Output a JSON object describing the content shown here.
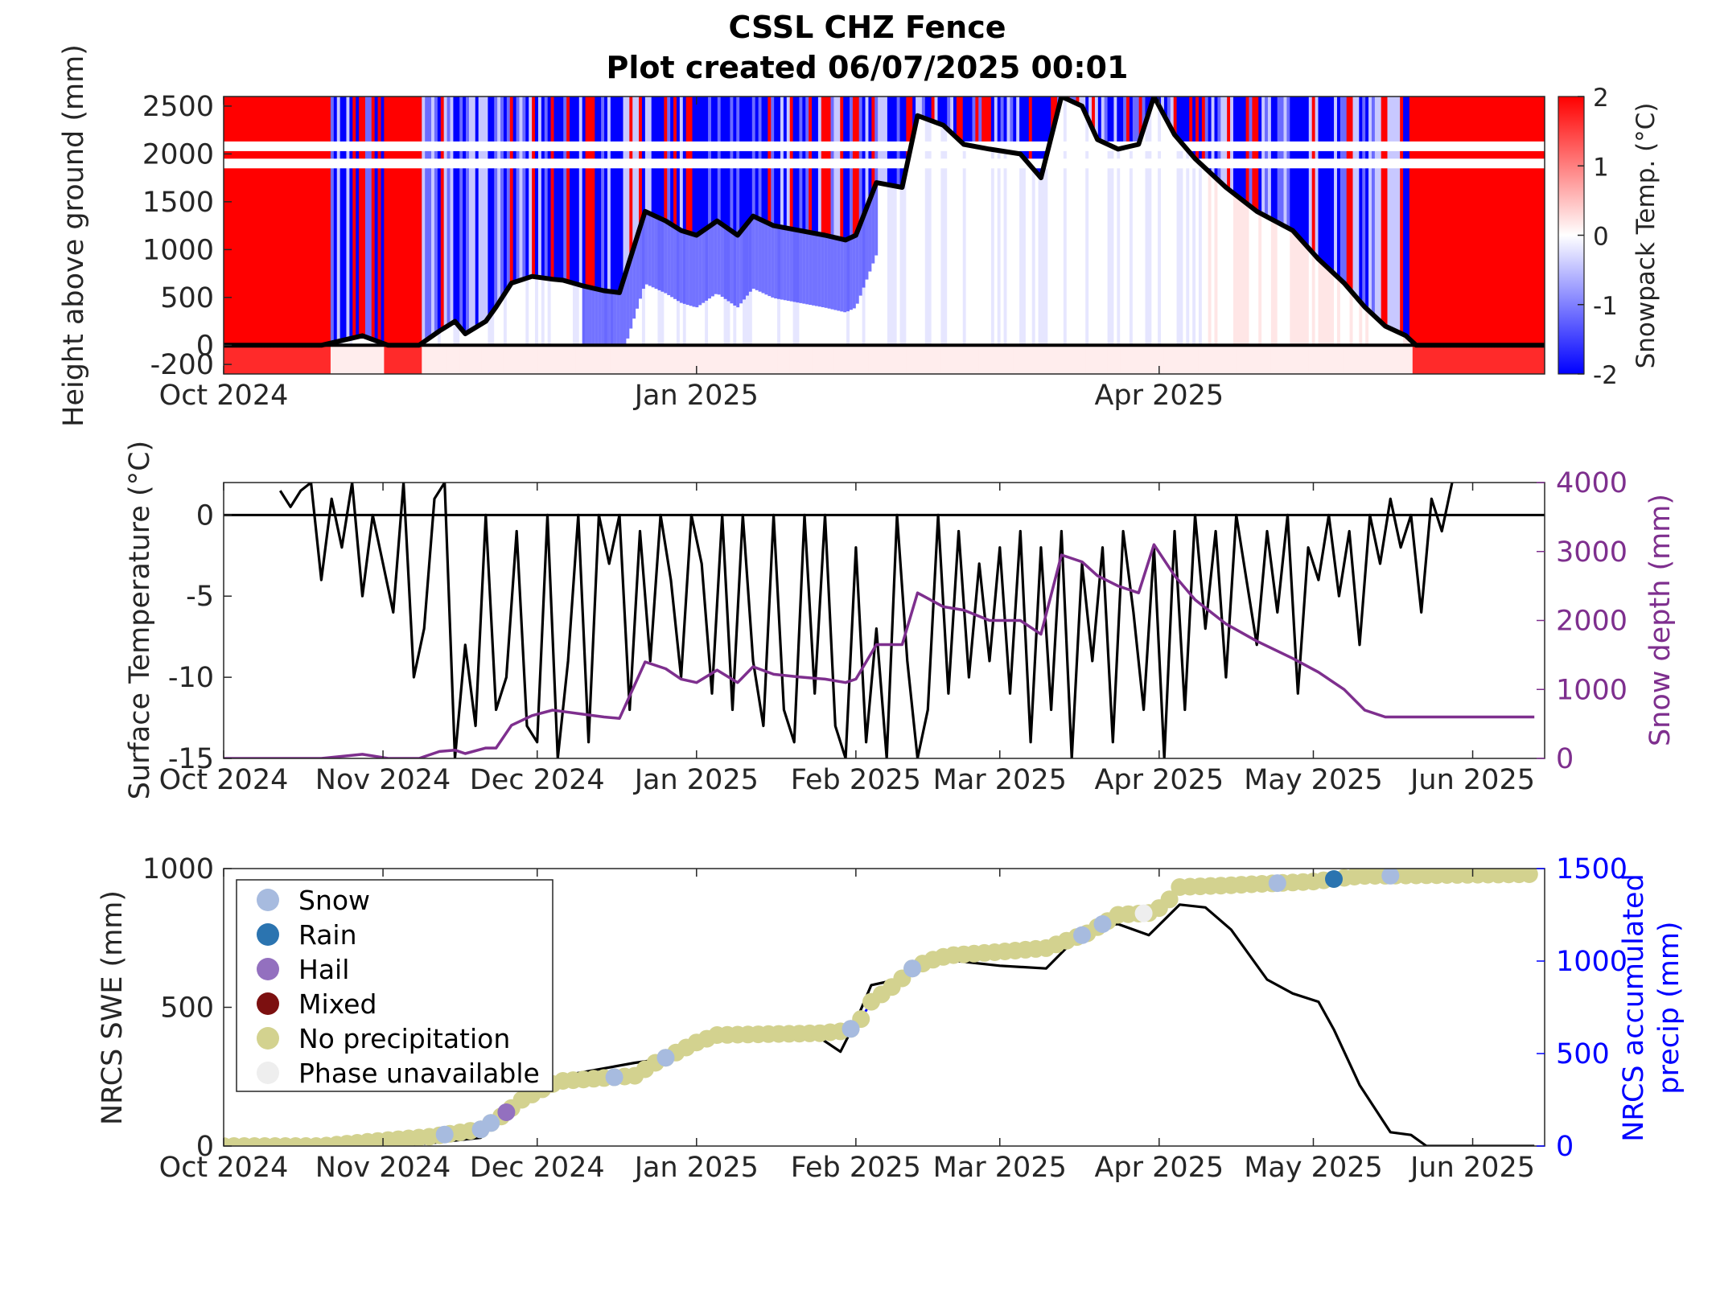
{
  "header": {
    "title": "CSSL CHZ Fence",
    "subtitle": "Plot created 06/07/2025 00:01"
  },
  "colors": {
    "warm": "#ff0000",
    "cold": "#0000ff",
    "snow_line": "#000000",
    "snow_depth": "#7e2f8e",
    "precip": "#0000ff",
    "snow_phase": "#a7bbdf",
    "rain_phase": "#2b74b0",
    "hail_phase": "#9370bf",
    "mixed_phase": "#7c1010",
    "none_phase": "#d3d28f",
    "unavailable_phase": "#eeeeee"
  },
  "chart_data": [
    {
      "id": "snowpack",
      "type": "heatmap",
      "ylabel": "Height above ground (mm)",
      "colorbar_label": "Snowpack Temp. (°C)",
      "colorbar_ticks": [
        "2",
        "1",
        "0",
        "-1",
        "-2"
      ],
      "clim": [
        -2,
        2
      ],
      "ylim": [
        -300,
        2600
      ],
      "yticks": [
        2500,
        2000,
        1500,
        1000,
        500,
        0,
        -200
      ],
      "ytick_labels": [
        "2500",
        "2000",
        "1500",
        "1000",
        "500",
        "0",
        "-200"
      ],
      "x_range": [
        "2024-10-01",
        "2025-06-15"
      ],
      "xticks": [
        "2024-10-01",
        "2025-01-01",
        "2025-04-01"
      ],
      "xtick_labels": [
        "Oct 2024",
        "Jan 2025",
        "Apr 2025"
      ],
      "snow_depth_line": {
        "x": [
          "2024-10-01",
          "2024-10-20",
          "2024-10-28",
          "2024-11-02",
          "2024-11-08",
          "2024-11-12",
          "2024-11-15",
          "2024-11-17",
          "2024-11-21",
          "2024-11-23",
          "2024-11-26",
          "2024-11-30",
          "2024-12-04",
          "2024-12-06",
          "2024-12-10",
          "2024-12-14",
          "2024-12-17",
          "2024-12-22",
          "2024-12-26",
          "2024-12-29",
          "2025-01-01",
          "2025-01-05",
          "2025-01-09",
          "2025-01-12",
          "2025-01-16",
          "2025-01-21",
          "2025-01-26",
          "2025-01-30",
          "2025-02-01",
          "2025-02-05",
          "2025-02-10",
          "2025-02-13",
          "2025-02-18",
          "2025-02-22",
          "2025-02-27",
          "2025-03-05",
          "2025-03-09",
          "2025-03-13",
          "2025-03-17",
          "2025-03-20",
          "2025-03-24",
          "2025-03-28",
          "2025-03-31",
          "2025-04-04",
          "2025-04-08",
          "2025-04-14",
          "2025-04-20",
          "2025-04-27",
          "2025-05-02",
          "2025-05-07",
          "2025-05-11",
          "2025-05-15",
          "2025-05-19",
          "2025-05-21",
          "2025-05-23",
          "2025-06-15"
        ],
        "y": [
          0,
          0,
          100,
          0,
          0,
          150,
          250,
          120,
          250,
          400,
          650,
          720,
          690,
          680,
          620,
          570,
          550,
          1400,
          1300,
          1200,
          1150,
          1300,
          1150,
          1350,
          1250,
          1200,
          1150,
          1100,
          1150,
          1700,
          1650,
          2400,
          2300,
          2100,
          2050,
          2000,
          1750,
          2600,
          2500,
          2150,
          2050,
          2100,
          2600,
          2200,
          1950,
          1650,
          1400,
          1200,
          900,
          650,
          400,
          200,
          100,
          0,
          0,
          0
        ],
        "unit": "mm"
      }
    },
    {
      "id": "surface",
      "type": "line",
      "ylabel": "Surface Temperature (°C)",
      "y2label": "Snow depth (mm)",
      "ylim": [
        -15,
        2
      ],
      "yticks": [
        0,
        -5,
        -10,
        -15
      ],
      "ytick_labels": [
        "0",
        "-5",
        "-10",
        "-15"
      ],
      "y2lim": [
        0,
        4000
      ],
      "y2ticks": [
        4000,
        3000,
        2000,
        1000,
        0
      ],
      "y2tick_labels": [
        "4000",
        "3000",
        "2000",
        "1000",
        "0"
      ],
      "x_range": [
        "2024-10-01",
        "2025-06-15"
      ],
      "xticks": [
        "2024-10-01",
        "2024-11-01",
        "2024-12-01",
        "2025-01-01",
        "2025-02-01",
        "2025-03-01",
        "2025-04-01",
        "2025-05-01",
        "2025-06-01"
      ],
      "xtick_labels": [
        "Oct 2024",
        "Nov 2024",
        "Dec 2024",
        "Jan 2025",
        "Feb 2025",
        "Mar 2025",
        "Apr 2025",
        "May 2025",
        "Jun 2025"
      ],
      "series": [
        {
          "name": "Surface Temperature",
          "axis": "left",
          "x": [
            "2024-10-12",
            "2024-10-14",
            "2024-10-16",
            "2024-10-18",
            "2024-10-20",
            "2024-10-22",
            "2024-10-24",
            "2024-10-26",
            "2024-10-28",
            "2024-10-30",
            "2024-11-01",
            "2024-11-03",
            "2024-11-05",
            "2024-11-07",
            "2024-11-09",
            "2024-11-11",
            "2024-11-13",
            "2024-11-15",
            "2024-11-17",
            "2024-11-19",
            "2024-11-21",
            "2024-11-23",
            "2024-11-25",
            "2024-11-27",
            "2024-11-29",
            "2024-12-01",
            "2024-12-03",
            "2024-12-05",
            "2024-12-07",
            "2024-12-09",
            "2024-12-11",
            "2024-12-13",
            "2024-12-15",
            "2024-12-17",
            "2024-12-19",
            "2024-12-21",
            "2024-12-23",
            "2024-12-25",
            "2024-12-27",
            "2024-12-29",
            "2024-12-31",
            "2025-01-02",
            "2025-01-04",
            "2025-01-06",
            "2025-01-08",
            "2025-01-10",
            "2025-01-12",
            "2025-01-14",
            "2025-01-16",
            "2025-01-18",
            "2025-01-20",
            "2025-01-22",
            "2025-01-24",
            "2025-01-26",
            "2025-01-28",
            "2025-01-30",
            "2025-02-01",
            "2025-02-03",
            "2025-02-05",
            "2025-02-07",
            "2025-02-09",
            "2025-02-11",
            "2025-02-13",
            "2025-02-15",
            "2025-02-17",
            "2025-02-19",
            "2025-02-21",
            "2025-02-23",
            "2025-02-25",
            "2025-02-27",
            "2025-03-01",
            "2025-03-03",
            "2025-03-05",
            "2025-03-07",
            "2025-03-09",
            "2025-03-11",
            "2025-03-13",
            "2025-03-15",
            "2025-03-17",
            "2025-03-19",
            "2025-03-21",
            "2025-03-23",
            "2025-03-25",
            "2025-03-27",
            "2025-03-29",
            "2025-03-31",
            "2025-04-02",
            "2025-04-04",
            "2025-04-06",
            "2025-04-08",
            "2025-04-10",
            "2025-04-12",
            "2025-04-14",
            "2025-04-16",
            "2025-04-18",
            "2025-04-20",
            "2025-04-22",
            "2025-04-24",
            "2025-04-26",
            "2025-04-28",
            "2025-04-30",
            "2025-05-02",
            "2025-05-04",
            "2025-05-06",
            "2025-05-08",
            "2025-05-10",
            "2025-05-12",
            "2025-05-14",
            "2025-05-16",
            "2025-05-18",
            "2025-05-20",
            "2025-05-22",
            "2025-05-24",
            "2025-05-26",
            "2025-05-28"
          ],
          "y": [
            1.5,
            0.5,
            1.5,
            2,
            -4,
            1,
            -2,
            2,
            -5,
            0,
            -3,
            -6,
            2,
            -10,
            -7,
            1,
            2,
            -15,
            -8,
            -13,
            0,
            -12,
            -10,
            -1,
            -13,
            -14,
            0,
            -15,
            -9,
            0,
            -14,
            0,
            -3,
            0,
            -12,
            -1,
            -9,
            0,
            -4,
            -10,
            0,
            -3,
            -11,
            0,
            -12,
            0,
            -9,
            -13,
            0,
            -12,
            -14,
            0,
            -11,
            0,
            -13,
            -15,
            -2,
            -14,
            -7,
            -15,
            0,
            -9,
            -15,
            -12,
            0,
            -11,
            -1,
            -10,
            -3,
            -9,
            -2,
            -11,
            -1,
            -14,
            -2,
            -12,
            -1,
            -15,
            -3,
            -9,
            -2,
            -14,
            -1,
            -6,
            -12,
            -2,
            -15,
            -1,
            -12,
            0,
            -7,
            -1,
            -10,
            0,
            -4,
            -8,
            -1,
            -6,
            0,
            -11,
            -2,
            -4,
            0,
            -5,
            -1,
            -8,
            0,
            -3,
            1,
            -2,
            0,
            -6,
            1,
            -1,
            2
          ],
          "unit": "°C"
        },
        {
          "name": "Snow depth",
          "axis": "right",
          "x": [
            "2024-10-01",
            "2024-10-20",
            "2024-10-28",
            "2024-11-02",
            "2024-11-08",
            "2024-11-12",
            "2024-11-15",
            "2024-11-17",
            "2024-11-21",
            "2024-11-23",
            "2024-11-26",
            "2024-11-30",
            "2024-12-04",
            "2024-12-06",
            "2024-12-10",
            "2024-12-14",
            "2024-12-17",
            "2024-12-22",
            "2024-12-26",
            "2024-12-29",
            "2025-01-01",
            "2025-01-05",
            "2025-01-09",
            "2025-01-12",
            "2025-01-16",
            "2025-01-21",
            "2025-01-26",
            "2025-01-30",
            "2025-02-01",
            "2025-02-05",
            "2025-02-10",
            "2025-02-13",
            "2025-02-18",
            "2025-02-22",
            "2025-02-27",
            "2025-03-05",
            "2025-03-09",
            "2025-03-13",
            "2025-03-17",
            "2025-03-20",
            "2025-03-24",
            "2025-03-28",
            "2025-03-31",
            "2025-04-04",
            "2025-04-08",
            "2025-04-14",
            "2025-04-20",
            "2025-04-27",
            "2025-05-02",
            "2025-05-07",
            "2025-05-11",
            "2025-05-15",
            "2025-05-19",
            "2025-05-22",
            "2025-05-26",
            "2025-06-13"
          ],
          "y": [
            0,
            0,
            60,
            0,
            0,
            100,
            120,
            70,
            150,
            150,
            480,
            620,
            700,
            680,
            640,
            600,
            580,
            1400,
            1300,
            1150,
            1100,
            1280,
            1100,
            1330,
            1220,
            1180,
            1150,
            1100,
            1150,
            1650,
            1650,
            2400,
            2200,
            2150,
            2000,
            2000,
            1800,
            2950,
            2850,
            2650,
            2500,
            2400,
            3100,
            2650,
            2300,
            1950,
            1700,
            1450,
            1250,
            1000,
            700,
            600,
            600,
            600,
            600,
            600
          ],
          "unit": "mm"
        }
      ]
    },
    {
      "id": "nrcs",
      "type": "line",
      "ylabel": "NRCS SWE (mm)",
      "y2label": "NRCS accumulated precip (mm)",
      "ylim": [
        0,
        1000
      ],
      "yticks": [
        1000,
        500,
        0
      ],
      "ytick_labels": [
        "1000",
        "500",
        "0"
      ],
      "y2lim": [
        0,
        1500
      ],
      "y2ticks": [
        1500,
        1000,
        500,
        0
      ],
      "y2tick_labels": [
        "1500",
        "1000",
        "500",
        "0"
      ],
      "x_range": [
        "2024-10-01",
        "2025-06-15"
      ],
      "xticks": [
        "2024-10-01",
        "2024-11-01",
        "2024-12-01",
        "2025-01-01",
        "2025-02-01",
        "2025-03-01",
        "2025-04-01",
        "2025-05-01",
        "2025-06-01"
      ],
      "xtick_labels": [
        "Oct 2024",
        "Nov 2024",
        "Dec 2024",
        "Jan 2025",
        "Feb 2025",
        "Mar 2025",
        "Apr 2025",
        "May 2025",
        "Jun 2025"
      ],
      "legend": {
        "placement": "top-left",
        "entries": [
          {
            "label": "Snow",
            "color_key": "snow_phase"
          },
          {
            "label": "Rain",
            "color_key": "rain_phase"
          },
          {
            "label": "Hail",
            "color_key": "hail_phase"
          },
          {
            "label": "Mixed",
            "color_key": "mixed_phase"
          },
          {
            "label": "No precipitation",
            "color_key": "none_phase"
          },
          {
            "label": "Phase unavailable",
            "color_key": "unavailable_phase"
          }
        ]
      },
      "series": [
        {
          "name": "NRCS SWE",
          "axis": "left",
          "x": [
            "2024-10-01",
            "2024-10-20",
            "2024-11-01",
            "2024-11-10",
            "2024-11-20",
            "2024-11-24",
            "2024-11-28",
            "2024-12-05",
            "2024-12-20",
            "2024-12-24",
            "2025-01-01",
            "2025-01-05",
            "2025-01-25",
            "2025-01-29",
            "2025-02-01",
            "2025-02-04",
            "2025-02-09",
            "2025-02-12",
            "2025-02-15",
            "2025-02-19",
            "2025-03-01",
            "2025-03-10",
            "2025-03-18",
            "2025-03-24",
            "2025-03-30",
            "2025-04-05",
            "2025-04-10",
            "2025-04-15",
            "2025-04-22",
            "2025-04-27",
            "2025-05-02",
            "2025-05-05",
            "2025-05-10",
            "2025-05-16",
            "2025-05-20",
            "2025-05-23",
            "2025-06-13"
          ],
          "y": [
            0,
            0,
            0,
            10,
            30,
            100,
            200,
            250,
            300,
            310,
            390,
            400,
            390,
            340,
            450,
            580,
            600,
            650,
            650,
            670,
            650,
            640,
            790,
            800,
            760,
            870,
            860,
            780,
            600,
            550,
            520,
            420,
            220,
            50,
            40,
            0,
            0
          ],
          "unit": "mm"
        },
        {
          "name": "NRCS accumulated precip",
          "axis": "right",
          "x": [
            "2024-10-01",
            "2024-10-20",
            "2024-11-01",
            "2024-11-10",
            "2024-11-20",
            "2024-11-24",
            "2024-11-28",
            "2024-12-05",
            "2024-12-20",
            "2024-12-24",
            "2025-01-01",
            "2025-01-05",
            "2025-01-25",
            "2025-01-29",
            "2025-02-01",
            "2025-02-04",
            "2025-02-09",
            "2025-02-12",
            "2025-02-15",
            "2025-02-19",
            "2025-03-01",
            "2025-03-10",
            "2025-03-18",
            "2025-03-24",
            "2025-03-30",
            "2025-04-02",
            "2025-04-05",
            "2025-04-15",
            "2025-05-01",
            "2025-05-10",
            "2025-06-13"
          ],
          "y": [
            0,
            0,
            30,
            50,
            90,
            160,
            250,
            350,
            380,
            450,
            560,
            600,
            610,
            620,
            640,
            780,
            880,
            960,
            1000,
            1030,
            1050,
            1070,
            1150,
            1250,
            1260,
            1300,
            1400,
            1410,
            1430,
            1460,
            1470
          ],
          "unit": "mm"
        }
      ],
      "phase_markers": {
        "snow": [
          "2024-11-13",
          "2024-11-20",
          "2024-11-22",
          "2024-12-16",
          "2024-12-26",
          "2025-01-31",
          "2025-02-12",
          "2025-03-17",
          "2025-03-21",
          "2025-04-24",
          "2025-05-16"
        ],
        "rain": [
          "2025-05-05"
        ],
        "hail": [
          "2024-11-25"
        ],
        "mixed": [],
        "unavailable": [
          "2025-03-29"
        ]
      }
    }
  ]
}
